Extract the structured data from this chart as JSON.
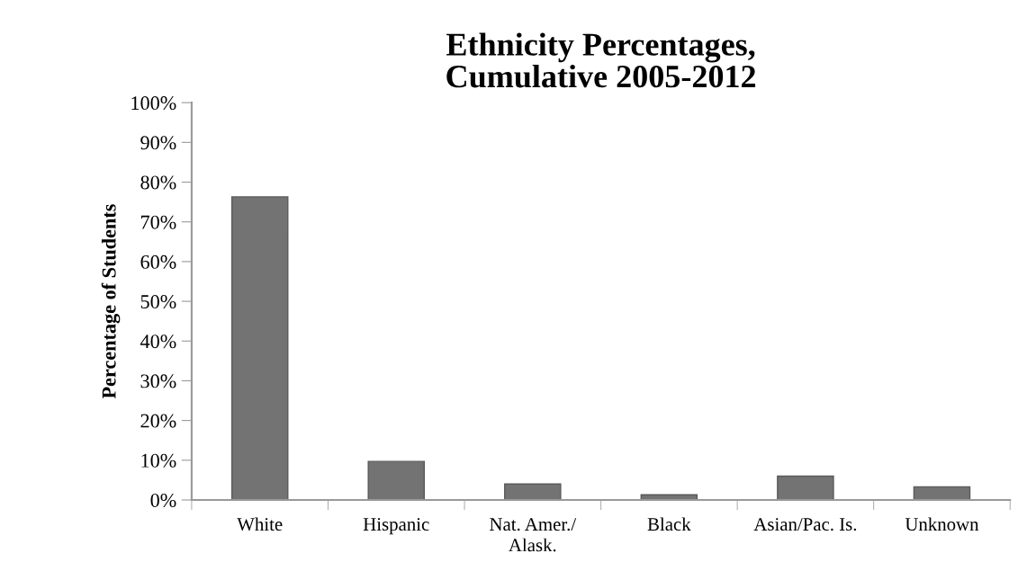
{
  "chart_data": {
    "type": "bar",
    "title": "Ethnicity Percentages,\nCumulative 2005-2012",
    "ylabel": "Percentage of Students",
    "categories": [
      "White",
      "Hispanic",
      "Nat. Amer./\nAlask.",
      "Black",
      "Asian/Pac. Is.",
      "Unknown"
    ],
    "values": [
      76.3,
      9.7,
      4.0,
      1.3,
      6.0,
      3.3
    ],
    "color": "#737373",
    "ylim": [
      0,
      100
    ],
    "yticks": [
      {
        "value": 0,
        "label": "0%"
      },
      {
        "value": 10,
        "label": "10%"
      },
      {
        "value": 20,
        "label": "20%"
      },
      {
        "value": 30,
        "label": "30%"
      },
      {
        "value": 40,
        "label": "40%"
      },
      {
        "value": 50,
        "label": "50%"
      },
      {
        "value": 60,
        "label": "60%"
      },
      {
        "value": 70,
        "label": "70%"
      },
      {
        "value": 80,
        "label": "80%"
      },
      {
        "value": 90,
        "label": "90%"
      },
      {
        "value": 100,
        "label": "100%"
      }
    ],
    "grid": false,
    "legend": false
  }
}
